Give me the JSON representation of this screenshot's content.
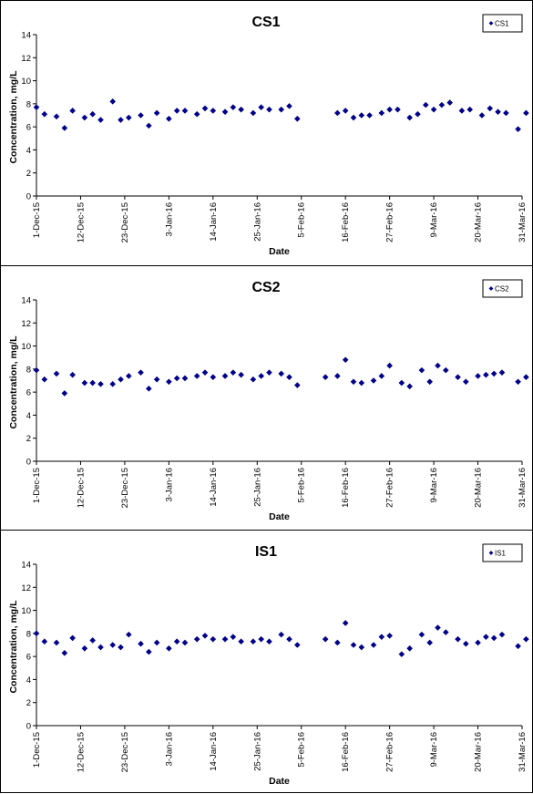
{
  "colors": {
    "marker": "#00008B",
    "axis": "#000000",
    "background": "#ffffff"
  },
  "chart_data": [
    {
      "type": "scatter",
      "title": "CS1",
      "xlabel": "Date",
      "ylabel": "Concentration, mg/L",
      "ylim": [
        0,
        14
      ],
      "yticks": [
        0,
        2,
        4,
        6,
        8,
        10,
        12,
        14
      ],
      "xlim": [
        "2015-12-01",
        "2016-03-31"
      ],
      "xticks": [
        "2015-12-01",
        "2015-12-12",
        "2015-12-23",
        "2016-01-03",
        "2016-01-14",
        "2016-01-25",
        "2016-02-05",
        "2016-02-16",
        "2016-02-27",
        "2016-03-09",
        "2016-03-20",
        "2016-03-31"
      ],
      "xtick_labels": [
        "1-Dec-15",
        "12-Dec-15",
        "23-Dec-15",
        "3-Jan-16",
        "14-Jan-16",
        "25-Jan-16",
        "5-Feb-16",
        "16-Feb-16",
        "27-Feb-16",
        "9-Mar-16",
        "20-Mar-16",
        "31-Mar-16"
      ],
      "legend": "top-right",
      "grid": false,
      "series": [
        {
          "name": "CS1",
          "points": [
            [
              "2015-12-01",
              7.7
            ],
            [
              "2015-12-03",
              7.1
            ],
            [
              "2015-12-06",
              6.9
            ],
            [
              "2015-12-08",
              5.9
            ],
            [
              "2015-12-10",
              7.4
            ],
            [
              "2015-12-13",
              6.8
            ],
            [
              "2015-12-15",
              7.1
            ],
            [
              "2015-12-17",
              6.6
            ],
            [
              "2015-12-20",
              8.2
            ],
            [
              "2015-12-22",
              6.6
            ],
            [
              "2015-12-24",
              6.8
            ],
            [
              "2015-12-27",
              7.0
            ],
            [
              "2015-12-29",
              6.1
            ],
            [
              "2015-12-31",
              7.2
            ],
            [
              "2016-01-03",
              6.7
            ],
            [
              "2016-01-05",
              7.4
            ],
            [
              "2016-01-07",
              7.4
            ],
            [
              "2016-01-10",
              7.1
            ],
            [
              "2016-01-12",
              7.6
            ],
            [
              "2016-01-14",
              7.4
            ],
            [
              "2016-01-17",
              7.3
            ],
            [
              "2016-01-19",
              7.7
            ],
            [
              "2016-01-21",
              7.5
            ],
            [
              "2016-01-24",
              7.2
            ],
            [
              "2016-01-26",
              7.7
            ],
            [
              "2016-01-28",
              7.5
            ],
            [
              "2016-01-31",
              7.5
            ],
            [
              "2016-02-02",
              7.8
            ],
            [
              "2016-02-04",
              6.7
            ],
            [
              "2016-02-14",
              7.2
            ],
            [
              "2016-02-16",
              7.4
            ],
            [
              "2016-02-18",
              6.8
            ],
            [
              "2016-02-20",
              7.0
            ],
            [
              "2016-02-22",
              7.0
            ],
            [
              "2016-02-25",
              7.2
            ],
            [
              "2016-02-27",
              7.5
            ],
            [
              "2016-02-29",
              7.5
            ],
            [
              "2016-03-03",
              6.8
            ],
            [
              "2016-03-05",
              7.1
            ],
            [
              "2016-03-07",
              7.9
            ],
            [
              "2016-03-09",
              7.5
            ],
            [
              "2016-03-11",
              7.9
            ],
            [
              "2016-03-13",
              8.1
            ],
            [
              "2016-03-16",
              7.4
            ],
            [
              "2016-03-18",
              7.5
            ],
            [
              "2016-03-21",
              7.0
            ],
            [
              "2016-03-23",
              7.6
            ],
            [
              "2016-03-25",
              7.3
            ],
            [
              "2016-03-27",
              7.2
            ],
            [
              "2016-03-30",
              5.8
            ],
            [
              "2016-04-01",
              7.2
            ]
          ]
        }
      ]
    },
    {
      "type": "scatter",
      "title": "CS2",
      "xlabel": "Date",
      "ylabel": "Concentration, mg/L",
      "ylim": [
        0,
        14
      ],
      "yticks": [
        0,
        2,
        4,
        6,
        8,
        10,
        12,
        14
      ],
      "xlim": [
        "2015-12-01",
        "2016-03-31"
      ],
      "xticks": [
        "2015-12-01",
        "2015-12-12",
        "2015-12-23",
        "2016-01-03",
        "2016-01-14",
        "2016-01-25",
        "2016-02-05",
        "2016-02-16",
        "2016-02-27",
        "2016-03-09",
        "2016-03-20",
        "2016-03-31"
      ],
      "xtick_labels": [
        "1-Dec-15",
        "12-Dec-15",
        "23-Dec-15",
        "3-Jan-16",
        "14-Jan-16",
        "25-Jan-16",
        "5-Feb-16",
        "16-Feb-16",
        "27-Feb-16",
        "9-Mar-16",
        "20-Mar-16",
        "31-Mar-16"
      ],
      "legend": "top-right",
      "grid": false,
      "series": [
        {
          "name": "CS2",
          "points": [
            [
              "2015-12-01",
              7.9
            ],
            [
              "2015-12-03",
              7.1
            ],
            [
              "2015-12-06",
              7.6
            ],
            [
              "2015-12-08",
              5.9
            ],
            [
              "2015-12-10",
              7.5
            ],
            [
              "2015-12-13",
              6.8
            ],
            [
              "2015-12-15",
              6.8
            ],
            [
              "2015-12-17",
              6.7
            ],
            [
              "2015-12-20",
              6.7
            ],
            [
              "2015-12-22",
              7.1
            ],
            [
              "2015-12-24",
              7.4
            ],
            [
              "2015-12-27",
              7.7
            ],
            [
              "2015-12-29",
              6.3
            ],
            [
              "2015-12-31",
              7.1
            ],
            [
              "2016-01-03",
              6.9
            ],
            [
              "2016-01-05",
              7.2
            ],
            [
              "2016-01-07",
              7.2
            ],
            [
              "2016-01-10",
              7.4
            ],
            [
              "2016-01-12",
              7.7
            ],
            [
              "2016-01-14",
              7.3
            ],
            [
              "2016-01-17",
              7.4
            ],
            [
              "2016-01-19",
              7.7
            ],
            [
              "2016-01-21",
              7.5
            ],
            [
              "2016-01-24",
              7.1
            ],
            [
              "2016-01-26",
              7.4
            ],
            [
              "2016-01-28",
              7.7
            ],
            [
              "2016-01-31",
              7.6
            ],
            [
              "2016-02-02",
              7.3
            ],
            [
              "2016-02-04",
              6.6
            ],
            [
              "2016-02-11",
              7.3
            ],
            [
              "2016-02-14",
              7.4
            ],
            [
              "2016-02-16",
              8.8
            ],
            [
              "2016-02-18",
              6.9
            ],
            [
              "2016-02-20",
              6.8
            ],
            [
              "2016-02-23",
              7.0
            ],
            [
              "2016-02-25",
              7.4
            ],
            [
              "2016-02-27",
              8.3
            ],
            [
              "2016-03-01",
              6.8
            ],
            [
              "2016-03-03",
              6.5
            ],
            [
              "2016-03-06",
              7.9
            ],
            [
              "2016-03-08",
              6.9
            ],
            [
              "2016-03-10",
              8.3
            ],
            [
              "2016-03-12",
              7.9
            ],
            [
              "2016-03-15",
              7.3
            ],
            [
              "2016-03-17",
              6.9
            ],
            [
              "2016-03-20",
              7.4
            ],
            [
              "2016-03-22",
              7.5
            ],
            [
              "2016-03-24",
              7.6
            ],
            [
              "2016-03-26",
              7.7
            ],
            [
              "2016-03-30",
              6.9
            ],
            [
              "2016-04-01",
              7.3
            ]
          ]
        }
      ]
    },
    {
      "type": "scatter",
      "title": "IS1",
      "xlabel": "Date",
      "ylabel": "Concentration, mg/L",
      "ylim": [
        0,
        14
      ],
      "yticks": [
        0,
        2,
        4,
        6,
        8,
        10,
        12,
        14
      ],
      "xlim": [
        "2015-12-01",
        "2016-03-31"
      ],
      "xticks": [
        "2015-12-01",
        "2015-12-12",
        "2015-12-23",
        "2016-01-03",
        "2016-01-14",
        "2016-01-25",
        "2016-02-05",
        "2016-02-16",
        "2016-02-27",
        "2016-03-09",
        "2016-03-20",
        "2016-03-31"
      ],
      "xtick_labels": [
        "1-Dec-15",
        "12-Dec-15",
        "23-Dec-15",
        "3-Jan-16",
        "14-Jan-16",
        "25-Jan-16",
        "5-Feb-16",
        "16-Feb-16",
        "27-Feb-16",
        "9-Mar-16",
        "20-Mar-16",
        "31-Mar-16"
      ],
      "legend": "top-right",
      "grid": false,
      "series": [
        {
          "name": "IS1",
          "points": [
            [
              "2015-12-01",
              8.0
            ],
            [
              "2015-12-03",
              7.3
            ],
            [
              "2015-12-06",
              7.2
            ],
            [
              "2015-12-08",
              6.3
            ],
            [
              "2015-12-10",
              7.6
            ],
            [
              "2015-12-13",
              6.7
            ],
            [
              "2015-12-15",
              7.4
            ],
            [
              "2015-12-17",
              6.8
            ],
            [
              "2015-12-20",
              7.0
            ],
            [
              "2015-12-22",
              6.8
            ],
            [
              "2015-12-24",
              7.9
            ],
            [
              "2015-12-27",
              7.1
            ],
            [
              "2015-12-29",
              6.4
            ],
            [
              "2015-12-31",
              7.2
            ],
            [
              "2016-01-03",
              6.7
            ],
            [
              "2016-01-05",
              7.3
            ],
            [
              "2016-01-07",
              7.2
            ],
            [
              "2016-01-10",
              7.5
            ],
            [
              "2016-01-12",
              7.8
            ],
            [
              "2016-01-14",
              7.5
            ],
            [
              "2016-01-17",
              7.5
            ],
            [
              "2016-01-19",
              7.7
            ],
            [
              "2016-01-21",
              7.3
            ],
            [
              "2016-01-24",
              7.3
            ],
            [
              "2016-01-26",
              7.5
            ],
            [
              "2016-01-28",
              7.3
            ],
            [
              "2016-01-31",
              7.9
            ],
            [
              "2016-02-02",
              7.5
            ],
            [
              "2016-02-04",
              7.0
            ],
            [
              "2016-02-11",
              7.5
            ],
            [
              "2016-02-14",
              7.2
            ],
            [
              "2016-02-16",
              8.9
            ],
            [
              "2016-02-18",
              7.0
            ],
            [
              "2016-02-20",
              6.8
            ],
            [
              "2016-02-23",
              7.0
            ],
            [
              "2016-02-25",
              7.7
            ],
            [
              "2016-02-27",
              7.8
            ],
            [
              "2016-03-01",
              6.2
            ],
            [
              "2016-03-03",
              6.7
            ],
            [
              "2016-03-06",
              7.9
            ],
            [
              "2016-03-08",
              7.2
            ],
            [
              "2016-03-10",
              8.5
            ],
            [
              "2016-03-12",
              8.1
            ],
            [
              "2016-03-15",
              7.5
            ],
            [
              "2016-03-17",
              7.1
            ],
            [
              "2016-03-20",
              7.2
            ],
            [
              "2016-03-22",
              7.7
            ],
            [
              "2016-03-24",
              7.6
            ],
            [
              "2016-03-26",
              7.9
            ],
            [
              "2016-03-30",
              6.9
            ],
            [
              "2016-04-01",
              7.5
            ]
          ]
        }
      ]
    }
  ]
}
